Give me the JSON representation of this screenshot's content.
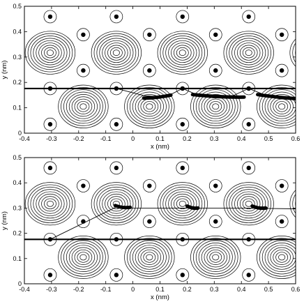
{
  "chart_data": [
    {
      "type": "contour",
      "xlabel": "x (nm)",
      "ylabel": "y (nm)",
      "xlim": [
        -0.4,
        0.6
      ],
      "ylim": [
        0,
        0.5
      ],
      "xticks": [
        "-0.4",
        "-0.3",
        "-0.2",
        "-0.1",
        "0",
        "0.1",
        "0.2",
        "0.3",
        "0.4",
        "0.5",
        "0.6"
      ],
      "yticks": [
        "0",
        "0.1",
        "0.2",
        "0.3",
        "0.4",
        "0.5"
      ],
      "contour_centers": [
        {
          "x": -0.183,
          "y": 0.105
        },
        {
          "x": 0.061,
          "y": 0.105
        },
        {
          "x": 0.305,
          "y": 0.105
        },
        {
          "x": 0.549,
          "y": 0.105
        },
        {
          "x": -0.305,
          "y": 0.317
        },
        {
          "x": -0.061,
          "y": 0.317
        },
        {
          "x": 0.183,
          "y": 0.317
        },
        {
          "x": 0.427,
          "y": 0.317
        },
        {
          "x": 0.671,
          "y": 0.317
        }
      ],
      "site_points": [
        {
          "x": -0.305,
          "y": 0.035
        },
        {
          "x": -0.061,
          "y": 0.035
        },
        {
          "x": 0.183,
          "y": 0.035
        },
        {
          "x": 0.427,
          "y": 0.035
        },
        {
          "x": -0.305,
          "y": 0.176
        },
        {
          "x": -0.061,
          "y": 0.176
        },
        {
          "x": 0.183,
          "y": 0.176
        },
        {
          "x": 0.427,
          "y": 0.176
        },
        {
          "x": -0.183,
          "y": 0.247
        },
        {
          "x": 0.061,
          "y": 0.247
        },
        {
          "x": 0.305,
          "y": 0.247
        },
        {
          "x": 0.549,
          "y": 0.247
        },
        {
          "x": -0.305,
          "y": 0.459
        },
        {
          "x": -0.061,
          "y": 0.459
        },
        {
          "x": 0.183,
          "y": 0.459
        },
        {
          "x": 0.427,
          "y": 0.459
        },
        {
          "x": -0.183,
          "y": 0.388
        },
        {
          "x": 0.061,
          "y": 0.388
        },
        {
          "x": 0.305,
          "y": 0.388
        },
        {
          "x": 0.549,
          "y": 0.388
        }
      ],
      "horizontal_line_y": 0.176,
      "trajectory": [
        [
          -0.305,
          0.176
        ],
        [
          -0.061,
          0.176
        ],
        [
          0.04,
          0.148
        ],
        [
          0.12,
          0.142
        ],
        [
          0.183,
          0.176
        ],
        [
          0.25,
          0.145
        ],
        [
          0.305,
          0.138
        ],
        [
          0.37,
          0.148
        ],
        [
          0.427,
          0.176
        ],
        [
          0.5,
          0.145
        ],
        [
          0.6,
          0.138
        ]
      ],
      "thick_segments": [
        [
          [
            0.04,
            0.138
          ],
          [
            0.14,
            0.15
          ]
        ],
        [
          [
            0.22,
            0.152
          ],
          [
            0.41,
            0.142
          ]
        ],
        [
          [
            0.46,
            0.152
          ],
          [
            0.6,
            0.136
          ]
        ]
      ]
    },
    {
      "type": "contour",
      "xlabel": "x (nm)",
      "ylabel": "y (nm)",
      "xlim": [
        -0.4,
        0.6
      ],
      "ylim": [
        0,
        0.5
      ],
      "xticks": [
        "-0.4",
        "-0.3",
        "-0.2",
        "-0.1",
        "0",
        "0.1",
        "0.2",
        "0.3",
        "0.4",
        "0.5",
        "0.6"
      ],
      "yticks": [
        "0",
        "0.1",
        "0.2",
        "0.3",
        "0.4",
        "0.5"
      ],
      "contour_centers": [
        {
          "x": -0.183,
          "y": 0.105
        },
        {
          "x": 0.061,
          "y": 0.105
        },
        {
          "x": 0.305,
          "y": 0.105
        },
        {
          "x": 0.549,
          "y": 0.105
        },
        {
          "x": -0.305,
          "y": 0.317
        },
        {
          "x": -0.061,
          "y": 0.317
        },
        {
          "x": 0.183,
          "y": 0.317
        },
        {
          "x": 0.427,
          "y": 0.317
        },
        {
          "x": 0.671,
          "y": 0.317
        }
      ],
      "site_points": [
        {
          "x": -0.305,
          "y": 0.035
        },
        {
          "x": -0.061,
          "y": 0.035
        },
        {
          "x": 0.183,
          "y": 0.035
        },
        {
          "x": 0.427,
          "y": 0.035
        },
        {
          "x": -0.305,
          "y": 0.176
        },
        {
          "x": -0.061,
          "y": 0.176
        },
        {
          "x": 0.183,
          "y": 0.176
        },
        {
          "x": 0.427,
          "y": 0.176
        },
        {
          "x": -0.183,
          "y": 0.247
        },
        {
          "x": 0.061,
          "y": 0.247
        },
        {
          "x": 0.305,
          "y": 0.247
        },
        {
          "x": 0.549,
          "y": 0.247
        },
        {
          "x": -0.305,
          "y": 0.459
        },
        {
          "x": -0.061,
          "y": 0.459
        },
        {
          "x": 0.183,
          "y": 0.459
        },
        {
          "x": 0.427,
          "y": 0.459
        },
        {
          "x": -0.183,
          "y": 0.388
        },
        {
          "x": 0.061,
          "y": 0.388
        },
        {
          "x": 0.305,
          "y": 0.388
        },
        {
          "x": 0.549,
          "y": 0.388
        }
      ],
      "horizontal_line_y": 0.176,
      "trajectory": [
        [
          -0.305,
          0.176
        ],
        [
          -0.06,
          0.305
        ],
        [
          0.0,
          0.3
        ],
        [
          0.1,
          0.3
        ],
        [
          0.2,
          0.3
        ],
        [
          0.3,
          0.3
        ],
        [
          0.4,
          0.3
        ],
        [
          0.6,
          0.297
        ]
      ],
      "thick_segments": [
        [
          [
            -0.065,
            0.31
          ],
          [
            -0.01,
            0.303
          ]
        ],
        [
          [
            0.2,
            0.308
          ],
          [
            0.24,
            0.3
          ]
        ],
        [
          [
            0.44,
            0.308
          ],
          [
            0.49,
            0.3
          ]
        ]
      ]
    }
  ]
}
